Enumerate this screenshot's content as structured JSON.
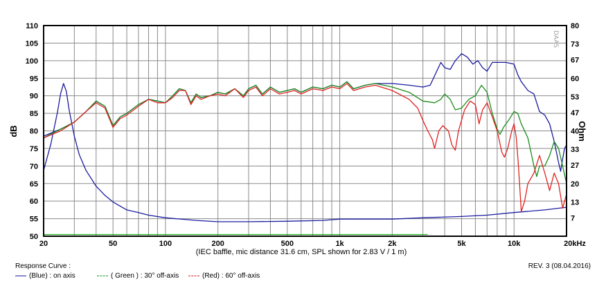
{
  "chart_data": {
    "type": "line",
    "title": "",
    "xlabel": "(IEC baffle, mic distance 31.6 cm, SPL shown for 2.83 V / 1 m)",
    "ylabel": "dB",
    "y2label": "Ohm",
    "x_scale": "log",
    "xlim": [
      20,
      20000
    ],
    "ylim": [
      50,
      110
    ],
    "y2lim": [
      0,
      80
    ],
    "grid": true,
    "x_ticks": [
      {
        "value": 20,
        "label": "20"
      },
      {
        "value": 50,
        "label": "50"
      },
      {
        "value": 100,
        "label": "100"
      },
      {
        "value": 200,
        "label": "200"
      },
      {
        "value": 500,
        "label": "500"
      },
      {
        "value": 1000,
        "label": "1k"
      },
      {
        "value": 2000,
        "label": "2k"
      },
      {
        "value": 5000,
        "label": "5k"
      },
      {
        "value": 10000,
        "label": "10k"
      },
      {
        "value": 20000,
        "label": "20kHz"
      }
    ],
    "y_ticks": [
      50,
      55,
      60,
      65,
      70,
      75,
      80,
      85,
      90,
      95,
      100,
      105,
      110
    ],
    "y2_ticks": [
      {
        "value": 7,
        "label": "7"
      },
      {
        "value": 13,
        "label": "13"
      },
      {
        "value": 20,
        "label": "20"
      },
      {
        "value": 27,
        "label": "27"
      },
      {
        "value": 33,
        "label": "33"
      },
      {
        "value": 40,
        "label": "40"
      },
      {
        "value": 47,
        "label": "47"
      },
      {
        "value": 53,
        "label": "53"
      },
      {
        "value": 60,
        "label": "60"
      },
      {
        "value": 67,
        "label": "67"
      },
      {
        "value": 73,
        "label": "73"
      },
      {
        "value": 80,
        "label": "80"
      }
    ],
    "series": [
      {
        "name": "(Blue) : on axis",
        "color": "#1a1aa0",
        "axis": "left",
        "points": [
          [
            20,
            78.5
          ],
          [
            25,
            80.5
          ],
          [
            30,
            82.5
          ],
          [
            35,
            85.5
          ],
          [
            40,
            88.5
          ],
          [
            45,
            87
          ],
          [
            50,
            81.5
          ],
          [
            55,
            84
          ],
          [
            60,
            85
          ],
          [
            70,
            87.5
          ],
          [
            80,
            89
          ],
          [
            90,
            88.5
          ],
          [
            100,
            88
          ],
          [
            110,
            90
          ],
          [
            120,
            92
          ],
          [
            130,
            91.5
          ],
          [
            140,
            88
          ],
          [
            150,
            90.5
          ],
          [
            160,
            89.5
          ],
          [
            180,
            90
          ],
          [
            200,
            91
          ],
          [
            220,
            90.5
          ],
          [
            250,
            92
          ],
          [
            280,
            90
          ],
          [
            300,
            92
          ],
          [
            330,
            93
          ],
          [
            360,
            90.5
          ],
          [
            400,
            92.5
          ],
          [
            450,
            91
          ],
          [
            500,
            91.5
          ],
          [
            550,
            92
          ],
          [
            600,
            91
          ],
          [
            700,
            92.5
          ],
          [
            800,
            92
          ],
          [
            900,
            93
          ],
          [
            1000,
            92.5
          ],
          [
            1100,
            94
          ],
          [
            1200,
            92
          ],
          [
            1400,
            93
          ],
          [
            1600,
            93.5
          ],
          [
            2000,
            93.5
          ],
          [
            2500,
            93
          ],
          [
            3000,
            92.5
          ],
          [
            3300,
            93
          ],
          [
            3600,
            97
          ],
          [
            3800,
            99.5
          ],
          [
            4000,
            98
          ],
          [
            4300,
            97.5
          ],
          [
            4600,
            100
          ],
          [
            5000,
            102
          ],
          [
            5400,
            101
          ],
          [
            5800,
            99
          ],
          [
            6200,
            100
          ],
          [
            6600,
            98
          ],
          [
            7000,
            97
          ],
          [
            7500,
            99.5
          ],
          [
            8000,
            99.5
          ],
          [
            9000,
            99.5
          ],
          [
            10000,
            99
          ],
          [
            10500,
            96
          ],
          [
            11000,
            94
          ],
          [
            12000,
            91.5
          ],
          [
            13000,
            90.5
          ],
          [
            14000,
            85.5
          ],
          [
            15000,
            84.5
          ],
          [
            16000,
            82
          ],
          [
            17000,
            77
          ],
          [
            18000,
            71
          ],
          [
            18500,
            68.5
          ],
          [
            19000,
            72
          ],
          [
            19500,
            75
          ],
          [
            20000,
            76
          ]
        ]
      },
      {
        "name": "( Green ) : 30° off-axis",
        "color": "#1a8c1a",
        "axis": "left",
        "points": [
          [
            20,
            78
          ],
          [
            25,
            80.5
          ],
          [
            30,
            82.5
          ],
          [
            35,
            85.5
          ],
          [
            40,
            88.5
          ],
          [
            45,
            87
          ],
          [
            50,
            81.5
          ],
          [
            55,
            84
          ],
          [
            60,
            85
          ],
          [
            70,
            87.5
          ],
          [
            80,
            89
          ],
          [
            90,
            88.5
          ],
          [
            100,
            88
          ],
          [
            110,
            90
          ],
          [
            120,
            92
          ],
          [
            130,
            91.5
          ],
          [
            140,
            88
          ],
          [
            150,
            90.5
          ],
          [
            160,
            89.5
          ],
          [
            180,
            90
          ],
          [
            200,
            91
          ],
          [
            220,
            90.5
          ],
          [
            250,
            92
          ],
          [
            280,
            90
          ],
          [
            300,
            92
          ],
          [
            330,
            93
          ],
          [
            360,
            90.5
          ],
          [
            400,
            92.5
          ],
          [
            450,
            91
          ],
          [
            500,
            91.5
          ],
          [
            550,
            92
          ],
          [
            600,
            91
          ],
          [
            700,
            92.5
          ],
          [
            800,
            92
          ],
          [
            900,
            93
          ],
          [
            1000,
            92.5
          ],
          [
            1100,
            94
          ],
          [
            1200,
            92
          ],
          [
            1400,
            93
          ],
          [
            1600,
            93.5
          ],
          [
            2000,
            92.5
          ],
          [
            2500,
            91
          ],
          [
            3000,
            88.5
          ],
          [
            3500,
            88
          ],
          [
            3800,
            89
          ],
          [
            4000,
            90.5
          ],
          [
            4300,
            89
          ],
          [
            4600,
            86
          ],
          [
            5000,
            86.5
          ],
          [
            5500,
            89
          ],
          [
            6000,
            90
          ],
          [
            6500,
            93
          ],
          [
            7000,
            91
          ],
          [
            7500,
            85
          ],
          [
            8000,
            80.5
          ],
          [
            8300,
            79
          ],
          [
            8700,
            81
          ],
          [
            9300,
            83
          ],
          [
            10000,
            85.5
          ],
          [
            10500,
            85
          ],
          [
            11000,
            82
          ],
          [
            12000,
            78
          ],
          [
            12500,
            74
          ],
          [
            13000,
            70
          ],
          [
            13500,
            67
          ],
          [
            14000,
            70
          ],
          [
            15000,
            70
          ],
          [
            16000,
            73
          ],
          [
            17000,
            77
          ],
          [
            18000,
            75
          ],
          [
            19000,
            70
          ],
          [
            20000,
            65
          ]
        ]
      },
      {
        "name": "(Red) : 60° off-axis",
        "color": "#e02020",
        "axis": "left",
        "points": [
          [
            20,
            78
          ],
          [
            25,
            80
          ],
          [
            30,
            82.5
          ],
          [
            35,
            85.5
          ],
          [
            40,
            88
          ],
          [
            45,
            86.5
          ],
          [
            50,
            81
          ],
          [
            55,
            83.5
          ],
          [
            60,
            84.5
          ],
          [
            70,
            87
          ],
          [
            80,
            89
          ],
          [
            90,
            88
          ],
          [
            100,
            88
          ],
          [
            110,
            89.5
          ],
          [
            120,
            91.5
          ],
          [
            130,
            91.5
          ],
          [
            140,
            87.5
          ],
          [
            150,
            90
          ],
          [
            160,
            89
          ],
          [
            180,
            90
          ],
          [
            200,
            90.5
          ],
          [
            220,
            90
          ],
          [
            250,
            92
          ],
          [
            280,
            89.5
          ],
          [
            300,
            91.5
          ],
          [
            330,
            92.5
          ],
          [
            360,
            90
          ],
          [
            400,
            92
          ],
          [
            450,
            90.5
          ],
          [
            500,
            91
          ],
          [
            550,
            91.5
          ],
          [
            600,
            90.5
          ],
          [
            700,
            92
          ],
          [
            800,
            91.5
          ],
          [
            900,
            92.5
          ],
          [
            1000,
            92
          ],
          [
            1100,
            93.5
          ],
          [
            1200,
            91.5
          ],
          [
            1400,
            92.5
          ],
          [
            1600,
            93
          ],
          [
            2000,
            91.5
          ],
          [
            2500,
            89
          ],
          [
            2800,
            86.5
          ],
          [
            3000,
            83
          ],
          [
            3200,
            80
          ],
          [
            3400,
            77.5
          ],
          [
            3500,
            75
          ],
          [
            3700,
            80
          ],
          [
            3900,
            81.5
          ],
          [
            4200,
            80
          ],
          [
            4400,
            76
          ],
          [
            4600,
            74.5
          ],
          [
            4800,
            80
          ],
          [
            5200,
            86
          ],
          [
            5600,
            88.5
          ],
          [
            6000,
            87.5
          ],
          [
            6300,
            82
          ],
          [
            6600,
            86
          ],
          [
            7000,
            88
          ],
          [
            7500,
            84
          ],
          [
            8000,
            80
          ],
          [
            8500,
            74
          ],
          [
            8800,
            72.5
          ],
          [
            9200,
            75
          ],
          [
            9700,
            80
          ],
          [
            10000,
            82
          ],
          [
            10300,
            78
          ],
          [
            10600,
            70
          ],
          [
            11000,
            57
          ],
          [
            11500,
            60
          ],
          [
            12000,
            65
          ],
          [
            13000,
            68
          ],
          [
            14000,
            73
          ],
          [
            15000,
            68
          ],
          [
            16000,
            63
          ],
          [
            17000,
            68
          ],
          [
            18000,
            65
          ],
          [
            19000,
            58
          ],
          [
            20000,
            62
          ]
        ]
      },
      {
        "name": "Impedance",
        "color": "#1a1aa0",
        "axis": "right",
        "points": [
          [
            20,
            25
          ],
          [
            22,
            35
          ],
          [
            24,
            47
          ],
          [
            25,
            54
          ],
          [
            26,
            58
          ],
          [
            27,
            55
          ],
          [
            28,
            48
          ],
          [
            30,
            38
          ],
          [
            32,
            31
          ],
          [
            35,
            25
          ],
          [
            40,
            19
          ],
          [
            45,
            15.5
          ],
          [
            50,
            13
          ],
          [
            60,
            10
          ],
          [
            70,
            9
          ],
          [
            80,
            8
          ],
          [
            100,
            7
          ],
          [
            150,
            6
          ],
          [
            200,
            5.5
          ],
          [
            300,
            5.5
          ],
          [
            500,
            5.7
          ],
          [
            800,
            6
          ],
          [
            1000,
            6.5
          ],
          [
            1100,
            6.5
          ],
          [
            1200,
            6.5
          ],
          [
            2000,
            6.5
          ],
          [
            3000,
            7
          ],
          [
            5000,
            7.5
          ],
          [
            7000,
            8
          ],
          [
            10000,
            9
          ],
          [
            15000,
            10
          ],
          [
            20000,
            11
          ]
        ]
      },
      {
        "name": "",
        "color": "#22bb22",
        "axis": "left",
        "points": [
          [
            20,
            50.5
          ],
          [
            3200,
            50.5
          ]
        ]
      }
    ]
  },
  "footer": {
    "caption": "Response Curve :",
    "revision": "REV. 3 (08.04.2016)",
    "legend_blue": "(Blue)  : on axis",
    "legend_green": "( Green ) : 30° off-axis",
    "legend_red": "(Red) : 60° off-axis"
  },
  "watermark": "DAAS"
}
